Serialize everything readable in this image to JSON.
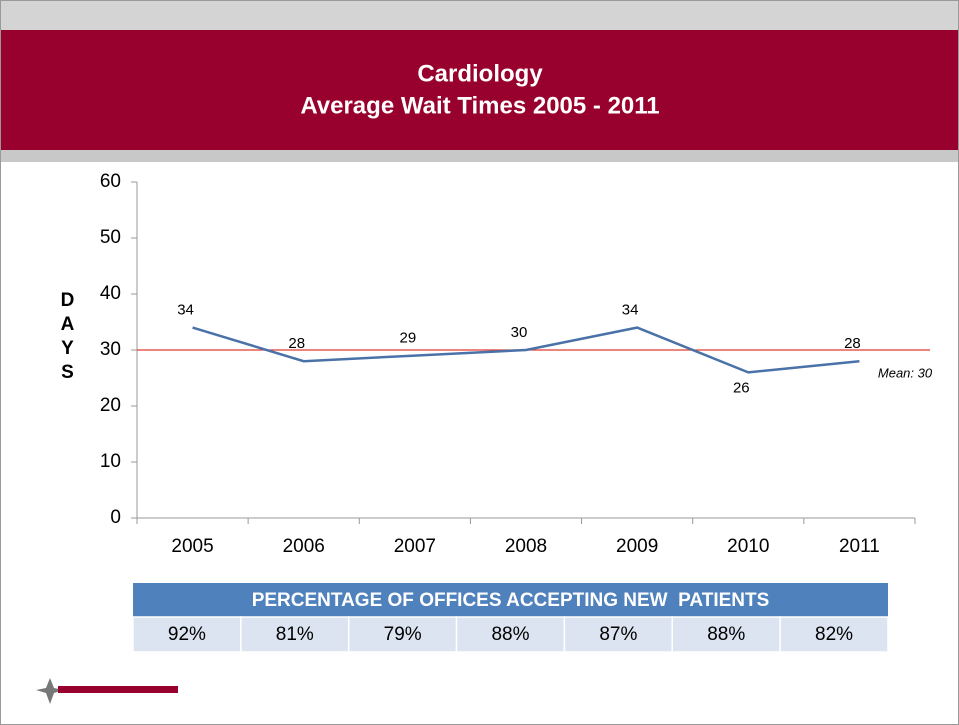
{
  "chart_data": {
    "type": "line",
    "title": "Cardiology",
    "subtitle": "Average Wait Times 2005 - 2011",
    "ylabel": "DAYS",
    "categories": [
      "2005",
      "2006",
      "2007",
      "2008",
      "2009",
      "2010",
      "2011"
    ],
    "values": [
      34,
      28,
      29,
      30,
      34,
      26,
      28
    ],
    "color": "#4a72a8",
    "ylim": [
      0,
      60
    ],
    "yticks": [
      0,
      10,
      20,
      30,
      40,
      50,
      60
    ],
    "mean": 30,
    "mean_label": "Mean: 30",
    "mean_color": "#e03c31"
  },
  "table": {
    "header": "PERCENTAGE OF OFFICES ACCEPTING NEW  PATIENTS",
    "rows": [
      [
        "92%",
        "81%",
        "79%",
        "88%",
        "87%",
        "88%",
        "82%"
      ]
    ]
  }
}
